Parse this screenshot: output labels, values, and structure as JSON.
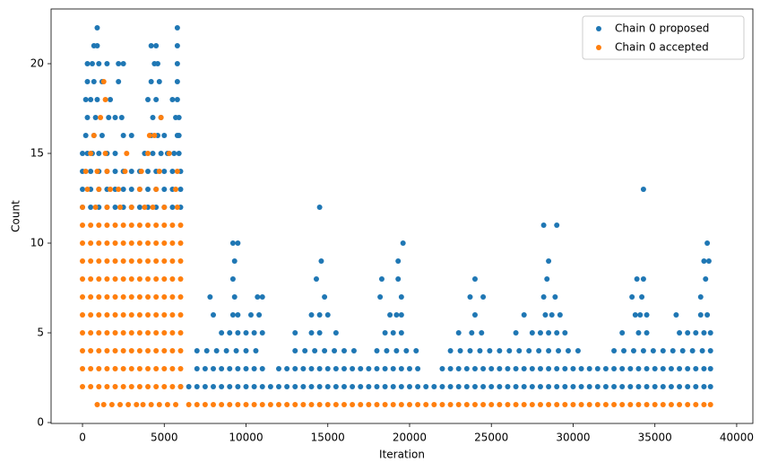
{
  "chart_data": {
    "type": "scatter",
    "x_label": "Iteration",
    "y_label": "Count",
    "xlim": [
      -1920,
      40990
    ],
    "ylim": [
      -0.05,
      23.05
    ],
    "xticks": [
      0,
      5000,
      10000,
      15000,
      20000,
      25000,
      30000,
      35000,
      40000
    ],
    "yticks": [
      0,
      5,
      10,
      15,
      20
    ],
    "grid": false,
    "legend": "upper right",
    "series": [
      {
        "name": "Chain 0 proposed",
        "color": "#1f77b4",
        "x": [
          0,
          500,
          1000,
          1500,
          2000,
          2500,
          3000,
          3500,
          4000,
          4500,
          5000,
          5500,
          6000,
          0,
          500,
          1000,
          1500,
          2000,
          2500,
          3000,
          3500,
          4000,
          4500,
          5000,
          5500,
          6000,
          0,
          500,
          1000,
          1500,
          2000,
          2500,
          3000,
          3500,
          4000,
          4500,
          5000,
          5500,
          6000,
          0,
          300,
          600,
          1000,
          1500,
          2000,
          3800,
          4300,
          4800,
          5200,
          5600,
          5900,
          200,
          700,
          1200,
          2500,
          3000,
          4200,
          4600,
          5000,
          5800,
          5900,
          300,
          800,
          1600,
          2000,
          2400,
          4300,
          4800,
          5700,
          5900,
          200,
          500,
          900,
          1700,
          4000,
          4500,
          5500,
          5800,
          300,
          700,
          1200,
          2200,
          4200,
          4700,
          5800,
          300,
          600,
          1000,
          1500,
          2200,
          2500,
          4400,
          4600,
          5800,
          700,
          900,
          4200,
          4500,
          5800,
          900,
          5800,
          6000,
          6500,
          7000,
          7500,
          8000,
          8500,
          9000,
          9500,
          10000,
          10500,
          11000,
          11500,
          12000,
          12500,
          13000,
          13500,
          14000,
          14500,
          15000,
          15500,
          16000,
          16500,
          17000,
          17500,
          18000,
          18500,
          19000,
          19500,
          20000,
          20500,
          21000,
          21500,
          22000,
          22500,
          23000,
          23500,
          24000,
          24500,
          25000,
          25500,
          26000,
          26500,
          27000,
          27500,
          28000,
          28500,
          29000,
          29500,
          30000,
          30500,
          31000,
          31500,
          32000,
          32500,
          33000,
          33500,
          34000,
          34500,
          35000,
          35500,
          36000,
          36500,
          37000,
          37500,
          38000,
          38400,
          7000,
          7500,
          8000,
          8500,
          9000,
          9500,
          10000,
          10500,
          11000,
          12000,
          12500,
          13000,
          13500,
          14000,
          14500,
          15000,
          15500,
          16000,
          16500,
          17000,
          17500,
          18000,
          18500,
          19000,
          19500,
          20000,
          20500,
          22000,
          22500,
          23000,
          23500,
          24000,
          24500,
          25000,
          25500,
          26000,
          26500,
          27000,
          27500,
          28000,
          28500,
          29000,
          29500,
          30000,
          30500,
          31000,
          31500,
          32000,
          32500,
          33000,
          33500,
          34000,
          34500,
          35000,
          35500,
          36000,
          36500,
          37000,
          37500,
          38000,
          38400,
          7000,
          7600,
          8200,
          8800,
          9400,
          10000,
          10600,
          13000,
          13600,
          14200,
          14800,
          15400,
          16000,
          16600,
          18000,
          18600,
          19200,
          19800,
          20400,
          22500,
          23100,
          23700,
          24300,
          24900,
          25500,
          26100,
          26700,
          27300,
          27900,
          28500,
          29100,
          29700,
          30300,
          32500,
          33100,
          33700,
          34300,
          34900,
          35500,
          36100,
          36700,
          37300,
          37900,
          38400,
          8500,
          9000,
          9500,
          10000,
          10500,
          11000,
          13000,
          14000,
          14500,
          15500,
          18500,
          19000,
          19500,
          23000,
          23800,
          24400,
          26500,
          27500,
          28000,
          28500,
          29000,
          29500,
          33000,
          34000,
          34500,
          36500,
          37000,
          37500,
          38000,
          38400,
          8000,
          9200,
          9500,
          10300,
          10800,
          14000,
          14500,
          15000,
          18800,
          19200,
          19500,
          24000,
          27000,
          28300,
          28700,
          29200,
          33800,
          34100,
          34500,
          36300,
          37800,
          38200,
          7800,
          9300,
          10700,
          11000,
          14800,
          18200,
          19500,
          23700,
          24500,
          28200,
          28900,
          33600,
          34200,
          37800,
          9200,
          14300,
          18300,
          19300,
          24000,
          28400,
          33900,
          34300,
          38100,
          9300,
          14600,
          19300,
          28500,
          38000,
          38300,
          9200,
          9500,
          19600,
          38200,
          28200,
          29000,
          14500,
          34300
        ],
        "values": [
          12,
          12,
          12,
          12,
          12,
          12,
          12,
          12,
          12,
          12,
          12,
          12,
          12,
          13,
          13,
          13,
          13,
          13,
          13,
          13,
          13,
          13,
          13,
          13,
          13,
          13,
          14,
          14,
          14,
          14,
          14,
          14,
          14,
          14,
          14,
          14,
          14,
          14,
          14,
          15,
          15,
          15,
          15,
          15,
          15,
          15,
          15,
          15,
          15,
          15,
          15,
          16,
          16,
          16,
          16,
          16,
          16,
          16,
          16,
          16,
          16,
          17,
          17,
          17,
          17,
          17,
          17,
          17,
          17,
          17,
          18,
          18,
          18,
          18,
          18,
          18,
          18,
          18,
          19,
          19,
          19,
          19,
          19,
          19,
          19,
          20,
          20,
          20,
          20,
          20,
          20,
          20,
          20,
          20,
          21,
          21,
          21,
          21,
          21,
          22,
          22,
          2,
          2,
          2,
          2,
          2,
          2,
          2,
          2,
          2,
          2,
          2,
          2,
          2,
          2,
          2,
          2,
          2,
          2,
          2,
          2,
          2,
          2,
          2,
          2,
          2,
          2,
          2,
          2,
          2,
          2,
          2,
          2,
          2,
          2,
          2,
          2,
          2,
          2,
          2,
          2,
          2,
          2,
          2,
          2,
          2,
          2,
          2,
          2,
          2,
          2,
          2,
          2,
          2,
          2,
          2,
          2,
          2,
          2,
          2,
          2,
          2,
          2,
          2,
          2,
          2,
          2,
          3,
          3,
          3,
          3,
          3,
          3,
          3,
          3,
          3,
          3,
          3,
          3,
          3,
          3,
          3,
          3,
          3,
          3,
          3,
          3,
          3,
          3,
          3,
          3,
          3,
          3,
          3,
          3,
          3,
          3,
          3,
          3,
          3,
          3,
          3,
          3,
          3,
          3,
          3,
          3,
          3,
          3,
          3,
          3,
          3,
          3,
          3,
          3,
          3,
          3,
          3,
          3,
          3,
          3,
          3,
          3,
          3,
          3,
          3,
          3,
          3,
          4,
          4,
          4,
          4,
          4,
          4,
          4,
          4,
          4,
          4,
          4,
          4,
          4,
          4,
          4,
          4,
          4,
          4,
          4,
          4,
          4,
          4,
          4,
          4,
          4,
          4,
          4,
          4,
          4,
          4,
          4,
          4,
          4,
          4,
          4,
          4,
          4,
          4,
          4,
          4,
          4,
          4,
          4,
          4,
          5,
          5,
          5,
          5,
          5,
          5,
          5,
          5,
          5,
          5,
          5,
          5,
          5,
          5,
          5,
          5,
          5,
          5,
          5,
          5,
          5,
          5,
          5,
          5,
          5,
          5,
          5,
          5,
          5,
          5,
          6,
          6,
          6,
          6,
          6,
          6,
          6,
          6,
          6,
          6,
          6,
          6,
          6,
          6,
          6,
          6,
          6,
          6,
          6,
          6,
          6,
          6,
          7,
          7,
          7,
          7,
          7,
          7,
          7,
          7,
          7,
          7,
          7,
          7,
          7,
          7,
          8,
          8,
          8,
          8,
          8,
          8,
          8,
          8,
          8,
          9,
          9,
          9,
          9,
          9,
          9,
          10,
          10,
          10,
          10,
          11,
          11,
          12,
          13
        ]
      },
      {
        "name": "Chain 0 accepted",
        "color": "#ff7f0e",
        "x": [
          900,
          1300,
          1800,
          2300,
          2800,
          3300,
          3700,
          4200,
          4700,
          5200,
          5700,
          0,
          500,
          1000,
          1500,
          2000,
          2500,
          3000,
          3500,
          4000,
          4500,
          5000,
          5500,
          6000,
          0,
          500,
          1000,
          1500,
          2000,
          2500,
          3000,
          3500,
          4000,
          4500,
          5000,
          5500,
          6000,
          0,
          500,
          1000,
          1500,
          2000,
          2500,
          3000,
          3500,
          4000,
          4500,
          5000,
          5500,
          6000,
          0,
          500,
          1000,
          1500,
          2000,
          2500,
          3000,
          3500,
          4000,
          4500,
          5000,
          5500,
          6000,
          0,
          500,
          1000,
          1500,
          2000,
          2500,
          3000,
          3500,
          4000,
          4500,
          5000,
          5500,
          6000,
          0,
          500,
          1000,
          1500,
          2000,
          2500,
          3000,
          3500,
          4000,
          4500,
          5000,
          5500,
          6000,
          0,
          500,
          1000,
          1500,
          2000,
          2500,
          3000,
          3500,
          4000,
          4500,
          5000,
          5500,
          6000,
          0,
          500,
          1000,
          1500,
          2000,
          2500,
          3000,
          3500,
          4000,
          4500,
          5000,
          5500,
          6000,
          0,
          500,
          1000,
          1500,
          2000,
          2500,
          3000,
          3500,
          4000,
          4500,
          5000,
          5500,
          6000,
          0,
          500,
          1000,
          1500,
          2000,
          2500,
          3000,
          3500,
          4000,
          4500,
          5000,
          5500,
          6000,
          0,
          800,
          1500,
          2300,
          3000,
          3800,
          4300,
          5000,
          5800,
          300,
          1000,
          1700,
          2200,
          3500,
          4500,
          5700,
          200,
          900,
          1500,
          2600,
          3600,
          4700,
          5800,
          500,
          1400,
          2700,
          4000,
          5300,
          700,
          4100,
          4400,
          1100,
          4800,
          1400,
          1300,
          6500,
          7000,
          7500,
          8000,
          8500,
          9000,
          9500,
          10000,
          10500,
          11000,
          11500,
          12000,
          12500,
          13000,
          13500,
          14000,
          14500,
          15000,
          15500,
          16000,
          16500,
          17000,
          17500,
          18000,
          18500,
          19000,
          19500,
          20000,
          20500,
          21000,
          21500,
          22000,
          22500,
          23000,
          23500,
          24000,
          24500,
          25000,
          25500,
          26000,
          26500,
          27000,
          27500,
          28000,
          28500,
          29000,
          29500,
          30000,
          30500,
          31000,
          31500,
          32000,
          32500,
          33000,
          33500,
          34000,
          34500,
          35000,
          35500,
          36000,
          36500,
          37000,
          37500,
          38000,
          38400
        ],
        "values": [
          1,
          1,
          1,
          1,
          1,
          1,
          1,
          1,
          1,
          1,
          1,
          2,
          2,
          2,
          2,
          2,
          2,
          2,
          2,
          2,
          2,
          2,
          2,
          2,
          3,
          3,
          3,
          3,
          3,
          3,
          3,
          3,
          3,
          3,
          3,
          3,
          3,
          4,
          4,
          4,
          4,
          4,
          4,
          4,
          4,
          4,
          4,
          4,
          4,
          4,
          5,
          5,
          5,
          5,
          5,
          5,
          5,
          5,
          5,
          5,
          5,
          5,
          5,
          6,
          6,
          6,
          6,
          6,
          6,
          6,
          6,
          6,
          6,
          6,
          6,
          6,
          7,
          7,
          7,
          7,
          7,
          7,
          7,
          7,
          7,
          7,
          7,
          7,
          7,
          8,
          8,
          8,
          8,
          8,
          8,
          8,
          8,
          8,
          8,
          8,
          8,
          8,
          9,
          9,
          9,
          9,
          9,
          9,
          9,
          9,
          9,
          9,
          9,
          9,
          9,
          10,
          10,
          10,
          10,
          10,
          10,
          10,
          10,
          10,
          10,
          10,
          10,
          10,
          11,
          11,
          11,
          11,
          11,
          11,
          11,
          11,
          11,
          11,
          11,
          11,
          11,
          12,
          12,
          12,
          12,
          12,
          12,
          12,
          12,
          12,
          13,
          13,
          13,
          13,
          13,
          13,
          13,
          14,
          14,
          14,
          14,
          14,
          14,
          14,
          15,
          15,
          15,
          15,
          15,
          16,
          16,
          16,
          17,
          17,
          18,
          19,
          1,
          1,
          1,
          1,
          1,
          1,
          1,
          1,
          1,
          1,
          1,
          1,
          1,
          1,
          1,
          1,
          1,
          1,
          1,
          1,
          1,
          1,
          1,
          1,
          1,
          1,
          1,
          1,
          1,
          1,
          1,
          1,
          1,
          1,
          1,
          1,
          1,
          1,
          1,
          1,
          1,
          1,
          1,
          1,
          1,
          1,
          1,
          1,
          1,
          1,
          1,
          1,
          1,
          1,
          1,
          1,
          1,
          1,
          1,
          1,
          1,
          1,
          1,
          1,
          1
        ]
      }
    ]
  }
}
